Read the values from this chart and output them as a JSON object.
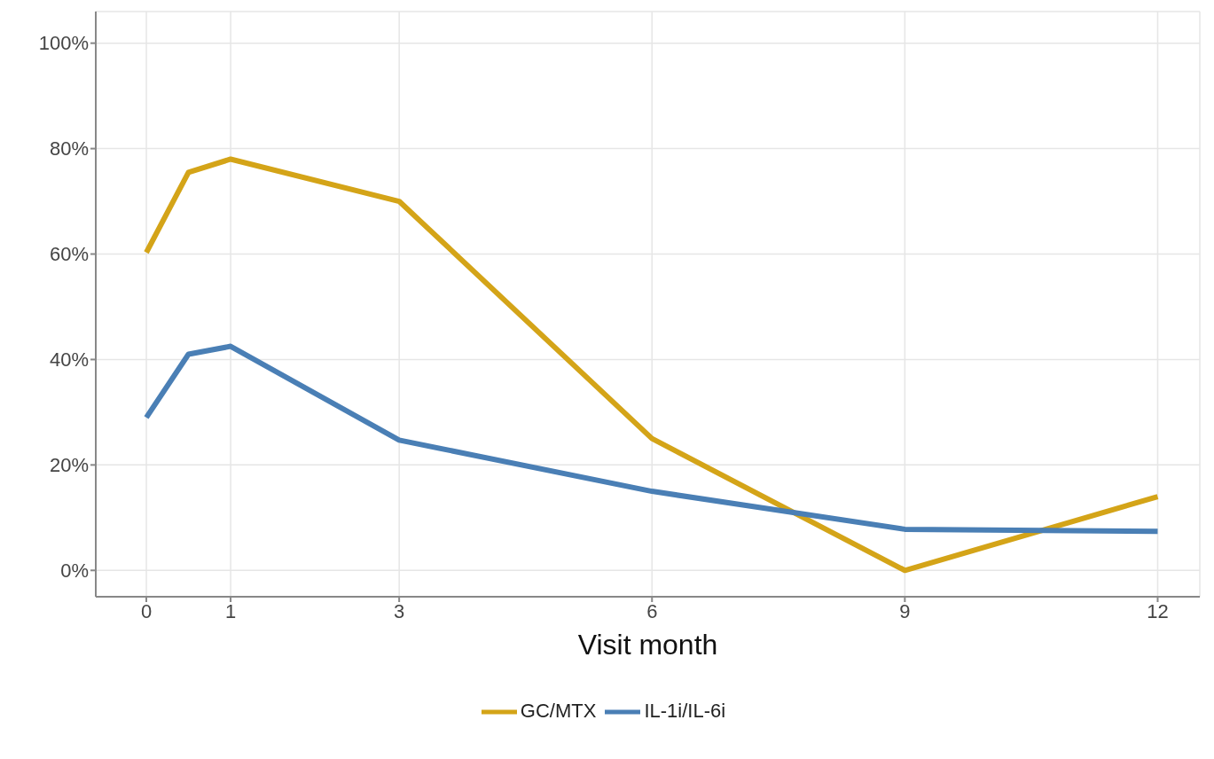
{
  "chart_data": {
    "type": "line",
    "xlabel": "Visit month",
    "x": [
      0,
      0.5,
      1,
      3,
      6,
      9,
      12
    ],
    "series": [
      {
        "name": "GC/MTX",
        "color": "#d4a418",
        "values": [
          60.3,
          75.5,
          78,
          70,
          25,
          0,
          14
        ]
      },
      {
        "name": "IL-1i/IL-6i",
        "color": "#4a7fb5",
        "values": [
          29,
          41,
          42.5,
          24.7,
          15,
          7.8,
          7.4
        ]
      }
    ],
    "xlim": [
      -0.6,
      12.5
    ],
    "xticks": [
      0,
      1,
      3,
      6,
      9,
      12
    ],
    "ylim": [
      -5,
      106
    ],
    "yticks": [
      {
        "value": 0,
        "label": "0%"
      },
      {
        "value": 20,
        "label": "20%"
      },
      {
        "value": 40,
        "label": "40%"
      },
      {
        "value": 60,
        "label": "60%"
      },
      {
        "value": 80,
        "label": "80%"
      },
      {
        "value": 100,
        "label": "100%"
      }
    ],
    "grid": true,
    "legend": "bottom",
    "marker": "none",
    "line_style": "solid"
  }
}
